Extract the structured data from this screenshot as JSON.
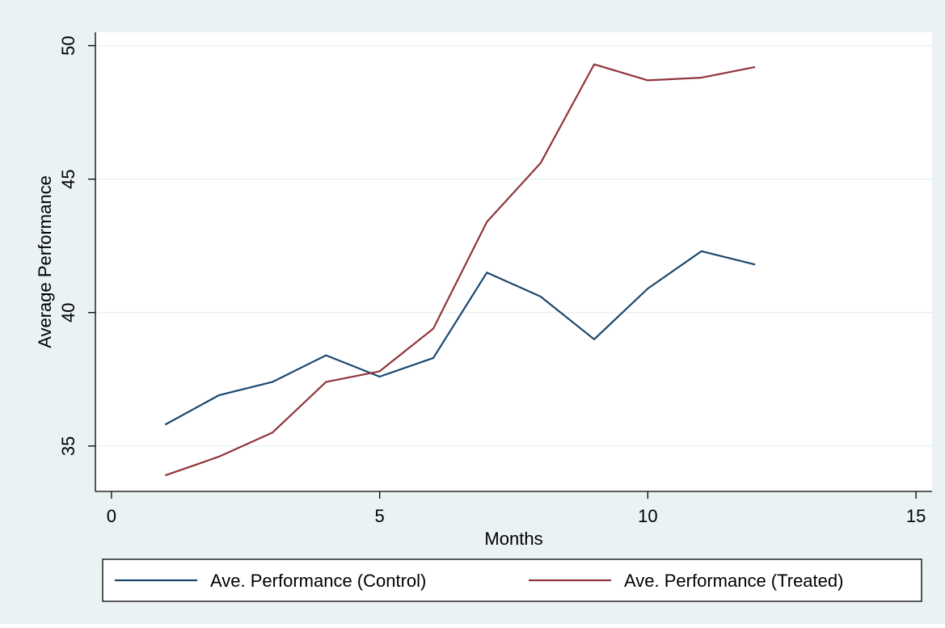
{
  "chart_data": {
    "type": "line",
    "xlabel": "Months",
    "ylabel": "Average Performance",
    "xlim": [
      -0.3,
      15.3
    ],
    "ylim": [
      33.3,
      50.5
    ],
    "xticks": [
      0,
      5,
      10,
      15
    ],
    "yticks": [
      35,
      40,
      45,
      50
    ],
    "grid": true,
    "legend_position": "bottom",
    "colors": {
      "background": "#eaf2f3",
      "plot": "#ffffff",
      "grid": "#eaf2f3",
      "axis": "#000000"
    },
    "x": [
      1,
      2,
      3,
      4,
      5,
      6,
      7,
      8,
      9,
      10,
      11,
      12
    ],
    "series": [
      {
        "name": "Ave. Performance (Control)",
        "color": "#1a476f",
        "values": [
          35.8,
          36.9,
          37.4,
          38.4,
          37.6,
          38.3,
          41.5,
          40.6,
          39.0,
          40.9,
          42.3,
          41.8
        ]
      },
      {
        "name": "Ave. Performance (Treated)",
        "color": "#90353b",
        "values": [
          33.9,
          34.6,
          35.5,
          37.4,
          37.8,
          39.4,
          43.4,
          45.6,
          49.3,
          48.7,
          48.8,
          49.2
        ]
      }
    ]
  }
}
